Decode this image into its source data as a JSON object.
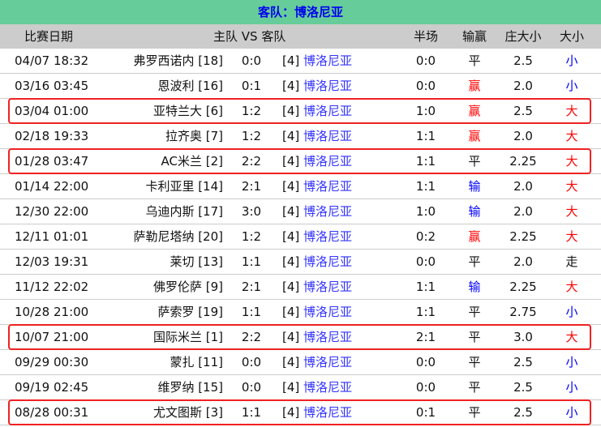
{
  "title": "客队：博洛尼亚",
  "headers": {
    "date": "比赛日期",
    "match": "主队 VS 客队",
    "half": "半场",
    "result": "输赢",
    "odds": "庄大小",
    "ou": "大小"
  },
  "colors": {
    "win": "#ff0000",
    "lose": "#0000ff",
    "draw": "#111111",
    "big": "#ff0000",
    "small": "#0000ff",
    "push": "#111111",
    "highlight": "#ee2222",
    "title_bg": "#66cc99"
  },
  "rows": [
    {
      "date": "04/07 18:32",
      "home": "弗罗西诺内 [18]",
      "score": "0:0",
      "rank": "[4]",
      "away": "博洛尼亚",
      "half": "0:0",
      "result": "平",
      "odds": "2.5",
      "ou": "小",
      "highlighted": false
    },
    {
      "date": "03/16 03:45",
      "home": "恩波利 [16]",
      "score": "0:1",
      "rank": "[4]",
      "away": "博洛尼亚",
      "half": "0:0",
      "result": "赢",
      "odds": "2.0",
      "ou": "小",
      "highlighted": false
    },
    {
      "date": "03/04 01:00",
      "home": "亚特兰大 [6]",
      "score": "1:2",
      "rank": "[4]",
      "away": "博洛尼亚",
      "half": "1:0",
      "result": "赢",
      "odds": "2.5",
      "ou": "大",
      "highlighted": true
    },
    {
      "date": "02/18 19:33",
      "home": "拉齐奥 [7]",
      "score": "1:2",
      "rank": "[4]",
      "away": "博洛尼亚",
      "half": "1:1",
      "result": "赢",
      "odds": "2.0",
      "ou": "大",
      "highlighted": false
    },
    {
      "date": "01/28 03:47",
      "home": "AC米兰 [2]",
      "score": "2:2",
      "rank": "[4]",
      "away": "博洛尼亚",
      "half": "1:1",
      "result": "平",
      "odds": "2.25",
      "ou": "大",
      "highlighted": true
    },
    {
      "date": "01/14 22:00",
      "home": "卡利亚里 [14]",
      "score": "2:1",
      "rank": "[4]",
      "away": "博洛尼亚",
      "half": "1:1",
      "result": "输",
      "odds": "2.0",
      "ou": "大",
      "highlighted": false
    },
    {
      "date": "12/30 22:00",
      "home": "乌迪内斯 [17]",
      "score": "3:0",
      "rank": "[4]",
      "away": "博洛尼亚",
      "half": "1:0",
      "result": "输",
      "odds": "2.0",
      "ou": "大",
      "highlighted": false
    },
    {
      "date": "12/11 01:01",
      "home": "萨勒尼塔纳 [20]",
      "score": "1:2",
      "rank": "[4]",
      "away": "博洛尼亚",
      "half": "0:2",
      "result": "赢",
      "odds": "2.25",
      "ou": "大",
      "highlighted": false
    },
    {
      "date": "12/03 19:31",
      "home": "莱切 [13]",
      "score": "1:1",
      "rank": "[4]",
      "away": "博洛尼亚",
      "half": "0:0",
      "result": "平",
      "odds": "2.0",
      "ou": "走",
      "highlighted": false
    },
    {
      "date": "11/12 22:02",
      "home": "佛罗伦萨 [9]",
      "score": "2:1",
      "rank": "[4]",
      "away": "博洛尼亚",
      "half": "1:1",
      "result": "输",
      "odds": "2.25",
      "ou": "大",
      "highlighted": false
    },
    {
      "date": "10/28 21:00",
      "home": "萨索罗 [19]",
      "score": "1:1",
      "rank": "[4]",
      "away": "博洛尼亚",
      "half": "1:1",
      "result": "平",
      "odds": "2.75",
      "ou": "小",
      "highlighted": false
    },
    {
      "date": "10/07 21:00",
      "home": "国际米兰 [1]",
      "score": "2:2",
      "rank": "[4]",
      "away": "博洛尼亚",
      "half": "2:1",
      "result": "平",
      "odds": "3.0",
      "ou": "大",
      "highlighted": true
    },
    {
      "date": "09/29 00:30",
      "home": "蒙扎 [11]",
      "score": "0:0",
      "rank": "[4]",
      "away": "博洛尼亚",
      "half": "0:0",
      "result": "平",
      "odds": "2.5",
      "ou": "小",
      "highlighted": false
    },
    {
      "date": "09/19 02:45",
      "home": "维罗纳 [15]",
      "score": "0:0",
      "rank": "[4]",
      "away": "博洛尼亚",
      "half": "0:0",
      "result": "平",
      "odds": "2.5",
      "ou": "小",
      "highlighted": false
    },
    {
      "date": "08/28 00:31",
      "home": "尤文图斯 [3]",
      "score": "1:1",
      "rank": "[4]",
      "away": "博洛尼亚",
      "half": "0:1",
      "result": "平",
      "odds": "2.5",
      "ou": "小",
      "highlighted": true
    }
  ]
}
